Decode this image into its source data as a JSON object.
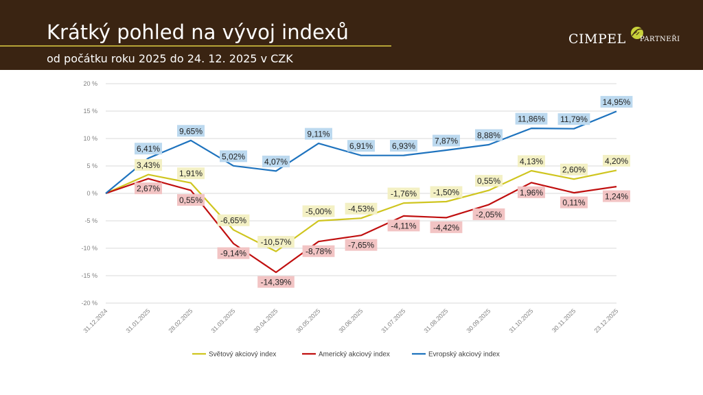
{
  "header": {
    "title": "Krátký pohled na vývoj indexů",
    "subtitle": "od počátku roku 2025 do 24. 12. 2025 v CZK",
    "logo_main": "CIMPEL",
    "logo_amp": "&",
    "logo_sub": "PARTNEŘI"
  },
  "colors": {
    "header_bg": "#3a2412",
    "accent_rule": "#b6a437",
    "series": [
      "#cfc51f",
      "#c00f0f",
      "#1e73be"
    ],
    "label_bg": [
      "#f3f0c4",
      "#f2c4c4",
      "#bcd9ef"
    ]
  },
  "chart_data": {
    "type": "line",
    "x": [
      "31.12.2024",
      "31.01.2025",
      "28.02.2025",
      "31.03.2025",
      "30.04.2025",
      "30.05.2025",
      "30.06.2025",
      "31.07.2025",
      "31.08.2025",
      "30.09.2025",
      "31.10.2025",
      "30.11.2025",
      "23.12.2025"
    ],
    "y_ticks": [
      "20 %",
      "15 %",
      "10 %",
      "5 %",
      "0 %",
      "-5 %",
      "-10 %",
      "-15 %",
      "-20 %"
    ],
    "ylim": [
      -20,
      20
    ],
    "grid": true,
    "legend_position": "bottom",
    "series": [
      {
        "name": "Světový akciový index",
        "values": [
          0,
          3.43,
          1.91,
          -6.65,
          -10.57,
          -5.0,
          -4.53,
          -1.76,
          -1.5,
          0.55,
          4.13,
          2.6,
          4.2
        ],
        "labels": [
          "",
          "3,43%",
          "1,91%",
          "-6,65%",
          "-10,57%",
          "-5,00%",
          "-4,53%",
          "-1,76%",
          "-1,50%",
          "0,55%",
          "4,13%",
          "2,60%",
          "4,20%"
        ]
      },
      {
        "name": "Americký akciový index",
        "values": [
          0,
          2.67,
          0.55,
          -9.14,
          -14.39,
          -8.78,
          -7.65,
          -4.11,
          -4.42,
          -2.05,
          1.96,
          0.11,
          1.24
        ],
        "labels": [
          "",
          "2,67%",
          "0,55%",
          "-9,14%",
          "-14,39%",
          "-8,78%",
          "-7,65%",
          "-4,11%",
          "-4,42%",
          "-2,05%",
          "1,96%",
          "0,11%",
          "1,24%"
        ]
      },
      {
        "name": "Evropský akciový index",
        "values": [
          0,
          6.41,
          9.65,
          5.02,
          4.07,
          9.11,
          6.91,
          6.93,
          7.87,
          8.88,
          11.86,
          11.79,
          14.95
        ],
        "labels": [
          "",
          "6,41%",
          "9,65%",
          "5,02%",
          "4,07%",
          "9,11%",
          "6,91%",
          "6,93%",
          "7,87%",
          "8,88%",
          "11,86%",
          "11,79%",
          "14,95%"
        ]
      }
    ]
  }
}
